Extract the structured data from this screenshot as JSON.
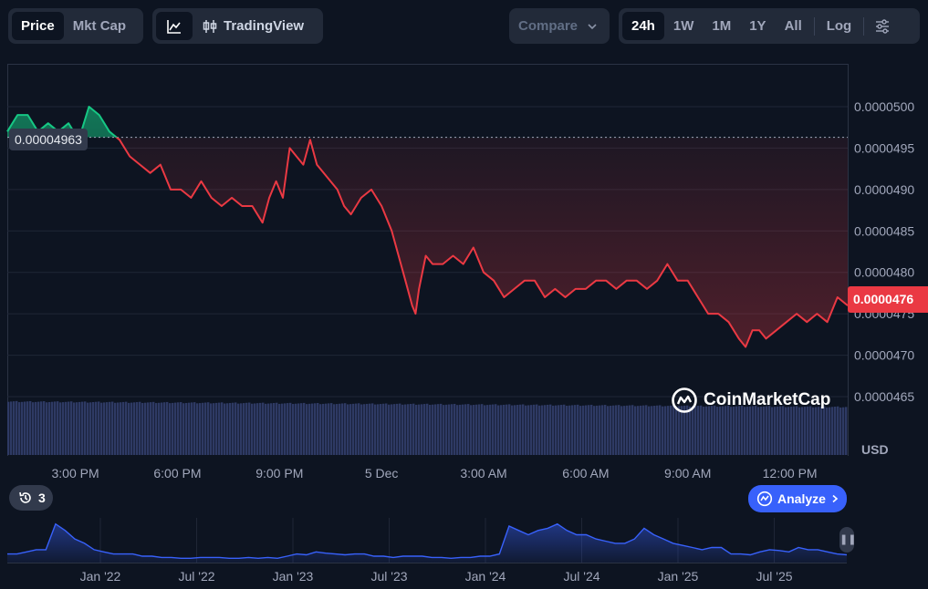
{
  "toolbar": {
    "view_tabs": [
      "Price",
      "Mkt Cap"
    ],
    "active_view": "Price",
    "chart_type_icon": "line-chart-icon",
    "tradingview_label": "TradingView",
    "tradingview_icon": "candlestick-icon",
    "compare_label": "Compare",
    "ranges": [
      "24h",
      "1W",
      "1M",
      "1Y",
      "All"
    ],
    "active_range": "24h",
    "log_label": "Log",
    "settings_icon": "sliders-icon"
  },
  "price_tag": "0.0000476",
  "open_price_label": "0.00004963",
  "currency_label": "USD",
  "watermark": "CoinMarketCap",
  "history_count": "3",
  "analyze_label": "Analyze",
  "colors": {
    "background": "#0d1421",
    "up": "#16c784",
    "down": "#ea3943",
    "accent": "#3861fb",
    "volume": "#2e3a64",
    "navigator_line": "#3861fb"
  },
  "chart_data": [
    {
      "type": "line",
      "y_ticks": [
        "0.0000500",
        "0.0000495",
        "0.0000490",
        "0.0000485",
        "0.0000480",
        "0.0000475",
        "0.0000470",
        "0.0000465"
      ],
      "ylim": [
        4.63e-05,
        5.06e-05
      ],
      "x_tick_labels": [
        "3:00 PM",
        "6:00 PM",
        "9:00 PM",
        "5 Dec",
        "3:00 AM",
        "6:00 AM",
        "9:00 AM",
        "12:00 PM"
      ],
      "x_tick_hours": [
        2,
        5,
        8,
        11,
        14,
        17,
        20,
        23
      ],
      "x_range_hours": [
        0,
        24.7
      ],
      "open_price": 4.963e-05,
      "series": [
        {
          "x": [
            0,
            0.3,
            0.6,
            0.9,
            1.2,
            1.5,
            1.8,
            2.1,
            2.4,
            2.7,
            3.0,
            3.3,
            3.6,
            3.9,
            4.2,
            4.5,
            4.8,
            5.1,
            5.4,
            5.7,
            6.0,
            6.3,
            6.6,
            6.9,
            7.2,
            7.5,
            7.7,
            7.9,
            8.1,
            8.3,
            8.5,
            8.7,
            8.9,
            9.1,
            9.3,
            9.5,
            9.7,
            9.9,
            10.1,
            10.4,
            10.7,
            11.0,
            11.3,
            11.5,
            11.7,
            11.9,
            12.0,
            12.1,
            12.3,
            12.5,
            12.8,
            13.1,
            13.4,
            13.7,
            14.0,
            14.3,
            14.6,
            14.9,
            15.2,
            15.5,
            15.8,
            16.1,
            16.4,
            16.7,
            17.0,
            17.3,
            17.6,
            17.9,
            18.2,
            18.5,
            18.8,
            19.1,
            19.4,
            19.7,
            20.0,
            20.3,
            20.6,
            20.9,
            21.2,
            21.5,
            21.7,
            21.9,
            22.1,
            22.3,
            22.6,
            22.9,
            23.2,
            23.5,
            23.8,
            24.1,
            24.4,
            24.7
          ],
          "values": [
            4.97e-05,
            4.99e-05,
            4.99e-05,
            4.97e-05,
            4.98e-05,
            4.97e-05,
            4.98e-05,
            4.96e-05,
            5e-05,
            4.99e-05,
            4.97e-05,
            4.96e-05,
            4.94e-05,
            4.93e-05,
            4.92e-05,
            4.93e-05,
            4.9e-05,
            4.9e-05,
            4.89e-05,
            4.91e-05,
            4.89e-05,
            4.88e-05,
            4.89e-05,
            4.88e-05,
            4.88e-05,
            4.86e-05,
            4.89e-05,
            4.91e-05,
            4.89e-05,
            4.95e-05,
            4.94e-05,
            4.93e-05,
            4.96e-05,
            4.93e-05,
            4.92e-05,
            4.91e-05,
            4.9e-05,
            4.88e-05,
            4.87e-05,
            4.89e-05,
            4.9e-05,
            4.88e-05,
            4.85e-05,
            4.82e-05,
            4.79e-05,
            4.76e-05,
            4.75e-05,
            4.78e-05,
            4.82e-05,
            4.81e-05,
            4.81e-05,
            4.82e-05,
            4.81e-05,
            4.83e-05,
            4.8e-05,
            4.79e-05,
            4.77e-05,
            4.78e-05,
            4.79e-05,
            4.79e-05,
            4.77e-05,
            4.78e-05,
            4.77e-05,
            4.78e-05,
            4.78e-05,
            4.79e-05,
            4.79e-05,
            4.78e-05,
            4.79e-05,
            4.79e-05,
            4.78e-05,
            4.79e-05,
            4.81e-05,
            4.79e-05,
            4.79e-05,
            4.77e-05,
            4.75e-05,
            4.75e-05,
            4.74e-05,
            4.72e-05,
            4.71e-05,
            4.73e-05,
            4.73e-05,
            4.72e-05,
            4.73e-05,
            4.74e-05,
            4.75e-05,
            4.74e-05,
            4.75e-05,
            4.74e-05,
            4.77e-05,
            4.76e-05
          ]
        }
      ],
      "volume_note": ""
    },
    {
      "type": "area",
      "x_tick_labels": [
        "Jan '22",
        "Jul '22",
        "Jan '23",
        "Jul '23",
        "Jan '24",
        "Jul '24",
        "Jan '25",
        "Jul '25"
      ],
      "values": [
        0.2,
        0.2,
        0.25,
        0.3,
        0.3,
        0.9,
        0.75,
        0.55,
        0.45,
        0.3,
        0.25,
        0.2,
        0.2,
        0.2,
        0.15,
        0.15,
        0.12,
        0.12,
        0.1,
        0.1,
        0.12,
        0.12,
        0.12,
        0.1,
        0.1,
        0.12,
        0.1,
        0.12,
        0.1,
        0.15,
        0.2,
        0.18,
        0.25,
        0.22,
        0.2,
        0.18,
        0.2,
        0.2,
        0.15,
        0.15,
        0.12,
        0.15,
        0.15,
        0.15,
        0.12,
        0.12,
        0.1,
        0.12,
        0.12,
        0.15,
        0.15,
        0.2,
        0.85,
        0.75,
        0.65,
        0.75,
        0.8,
        0.9,
        0.75,
        0.65,
        0.65,
        0.55,
        0.5,
        0.45,
        0.45,
        0.55,
        0.8,
        0.65,
        0.55,
        0.45,
        0.4,
        0.35,
        0.3,
        0.35,
        0.35,
        0.2,
        0.2,
        0.18,
        0.25,
        0.3,
        0.28,
        0.25,
        0.35,
        0.3,
        0.3,
        0.25,
        0.2,
        0.18
      ]
    }
  ]
}
